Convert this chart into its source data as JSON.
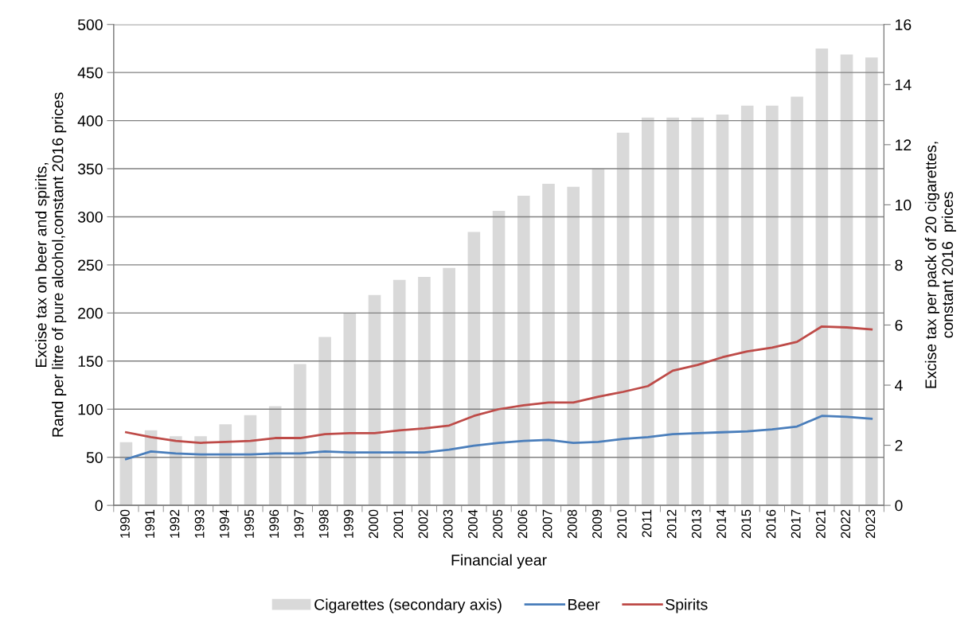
{
  "chart_data": {
    "type": "bar",
    "xlabel": "Financial year",
    "ylabel": "Excise tax on beer and spirits,\nRand per litre of pure alcohol,constant 2016 prices",
    "y2label": "Excise tax per pack of 20 cigarettes,\nconstant 2016  prices",
    "categories": [
      "1990",
      "1991",
      "1992",
      "1993",
      "1994",
      "1995",
      "1996",
      "1997",
      "1998",
      "1999",
      "2000",
      "2001",
      "2002",
      "2003",
      "2004",
      "2005",
      "2006",
      "2007",
      "2008",
      "2009",
      "2010",
      "2011",
      "2012",
      "2013",
      "2014",
      "2015",
      "2016",
      "2017",
      "2021",
      "2022",
      "2023"
    ],
    "series": [
      {
        "name": "Cigarettes (secondary axis)",
        "axis": "y2",
        "color": "#d9d9d9",
        "values": [
          2.1,
          2.5,
          2.3,
          2.3,
          2.7,
          3.0,
          3.3,
          4.7,
          5.6,
          6.4,
          7.0,
          7.5,
          7.6,
          7.9,
          9.1,
          9.8,
          10.3,
          10.7,
          10.6,
          11.2,
          12.4,
          12.9,
          12.9,
          12.9,
          13.0,
          13.3,
          13.3,
          13.6,
          15.2,
          15.0,
          14.9
        ]
      },
      {
        "name": "Beer",
        "type": "line",
        "color": "#4a7ebb",
        "values": [
          48,
          56,
          54,
          53,
          53,
          53,
          54,
          54,
          56,
          55,
          55,
          55,
          55,
          58,
          62,
          65,
          67,
          68,
          65,
          66,
          69,
          71,
          74,
          75,
          76,
          77,
          79,
          82,
          93,
          92,
          90
        ]
      },
      {
        "name": "Spirits",
        "type": "line",
        "color": "#be4b48",
        "values": [
          76,
          71,
          67,
          65,
          66,
          67,
          70,
          70,
          74,
          75,
          75,
          78,
          80,
          83,
          93,
          100,
          104,
          107,
          107,
          113,
          118,
          124,
          140,
          146,
          154,
          160,
          164,
          170,
          186,
          185,
          183
        ]
      }
    ],
    "ylim": [
      0,
      500
    ],
    "yticks": [
      0,
      50,
      100,
      150,
      200,
      250,
      300,
      350,
      400,
      450,
      500
    ],
    "y2lim": [
      0,
      16
    ],
    "y2ticks": [
      0,
      2,
      4,
      6,
      8,
      10,
      12,
      14,
      16
    ],
    "grid": "y",
    "legend": "bottom",
    "marker": "none",
    "line_style": "solid"
  }
}
